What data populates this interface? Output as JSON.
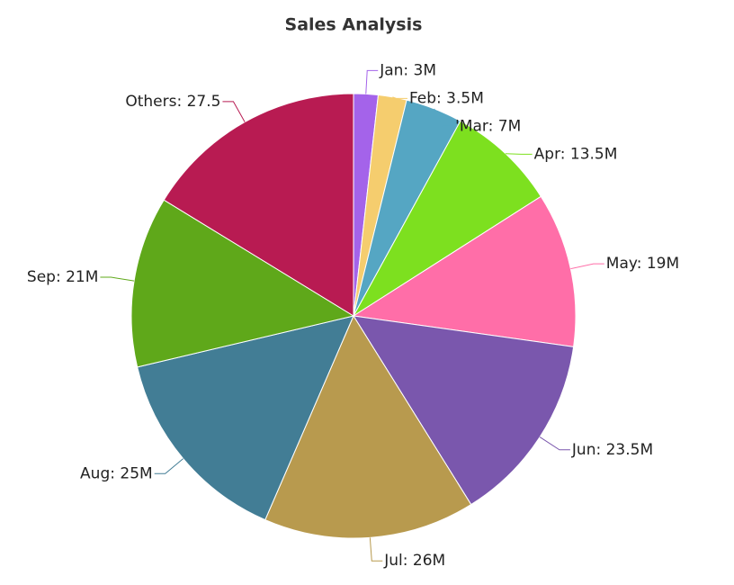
{
  "chart_data": {
    "type": "pie",
    "title": "Sales Analysis",
    "values": [
      3,
      3.5,
      7,
      13.5,
      19,
      23.5,
      26,
      25,
      21,
      27.5
    ],
    "value_labels": [
      "Jan: 3M",
      "Feb: 3.5M",
      "'Mar: 7M",
      "Apr: 13.5M",
      "May: 19M",
      "Jun: 23.5M",
      "Jul: 26M",
      "Aug: 25M",
      "Sep: 21M",
      "Others: 27.5"
    ],
    "colors": [
      "#a463ea",
      "#f5cd6e",
      "#55a6c3",
      "#7de01f",
      "#ff6ea8",
      "#7a57ad",
      "#b89a4e",
      "#427d95",
      "#5fa81a",
      "#b81b52"
    ]
  }
}
